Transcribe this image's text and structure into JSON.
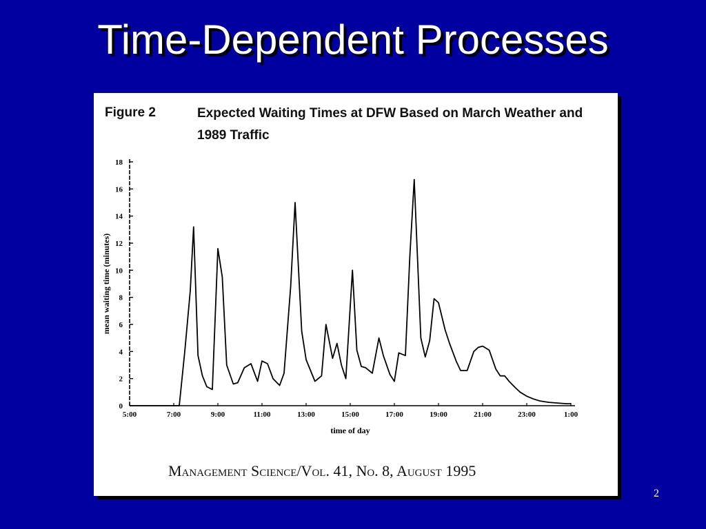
{
  "slide": {
    "title": "Time-Dependent Processes",
    "page_number": "2"
  },
  "figure": {
    "label": "Figure 2",
    "caption": "Expected Waiting Times at DFW Based on March Weather and 1989 Traffic",
    "source": "Management Science/Vol. 41, No. 8, August 1995"
  },
  "colors": {
    "background": "#0000a0",
    "title": "#ffffff",
    "figure_bg": "#ffffff",
    "line": "#000000"
  },
  "chart_data": {
    "type": "line",
    "title": "Expected Waiting Times at DFW Based on March Weather and 1989 Traffic",
    "xlabel": "time of day",
    "ylabel": "mean waiting time (minutes)",
    "xlim": [
      5,
      25
    ],
    "ylim": [
      0,
      18
    ],
    "x_ticks": [
      5,
      7,
      9,
      11,
      13,
      15,
      17,
      19,
      21,
      23,
      25
    ],
    "x_tick_labels": [
      "5:00",
      "7:00",
      "9:00",
      "11:00",
      "13:00",
      "15:00",
      "17:00",
      "19:00",
      "21:00",
      "23:00",
      "1:00"
    ],
    "y_ticks": [
      0,
      2,
      4,
      6,
      8,
      10,
      12,
      14,
      16,
      18
    ],
    "y_tick_labels": [
      "0",
      "2",
      "4",
      "6",
      "8",
      "10",
      "12",
      "14",
      "16",
      "18"
    ],
    "grid": false,
    "series": [
      {
        "x": [
          5.0,
          7.25,
          7.5,
          7.75,
          7.9,
          8.1,
          8.3,
          8.5,
          8.75,
          9.0,
          9.2,
          9.4,
          9.7,
          9.9,
          10.2,
          10.5,
          10.8,
          11.0,
          11.25,
          11.5,
          11.8,
          12.0,
          12.3,
          12.5,
          12.8,
          13.0,
          13.2,
          13.4,
          13.7,
          13.9,
          14.2,
          14.4,
          14.6,
          14.8,
          15.1,
          15.3,
          15.5,
          15.7,
          16.0,
          16.3,
          16.5,
          16.8,
          17.0,
          17.2,
          17.5,
          17.7,
          17.9,
          18.2,
          18.4,
          18.6,
          18.8,
          19.0,
          19.3,
          19.5,
          19.8,
          20.0,
          20.3,
          20.6,
          20.8,
          21.0,
          21.3,
          21.6,
          21.8,
          22.0,
          22.2,
          22.5,
          22.7,
          23.0,
          23.3,
          23.6,
          24.0,
          24.4,
          24.8,
          25.0
        ],
        "y": [
          0.0,
          0.0,
          4.0,
          8.5,
          13.2,
          3.7,
          2.2,
          1.4,
          1.2,
          11.6,
          9.5,
          3.0,
          1.6,
          1.7,
          2.8,
          3.1,
          1.8,
          3.3,
          3.1,
          2.0,
          1.5,
          2.4,
          8.8,
          15.0,
          5.5,
          3.4,
          2.6,
          1.8,
          2.2,
          6.0,
          3.5,
          4.6,
          3.0,
          2.0,
          10.0,
          4.1,
          2.9,
          2.8,
          2.4,
          5.0,
          3.7,
          2.3,
          1.8,
          3.9,
          3.7,
          11.0,
          16.7,
          5.0,
          3.6,
          4.8,
          7.9,
          7.6,
          5.6,
          4.6,
          3.3,
          2.6,
          2.6,
          4.0,
          4.3,
          4.4,
          4.1,
          2.7,
          2.2,
          2.2,
          1.8,
          1.3,
          1.0,
          0.7,
          0.5,
          0.35,
          0.25,
          0.2,
          0.15,
          0.15
        ]
      }
    ]
  }
}
